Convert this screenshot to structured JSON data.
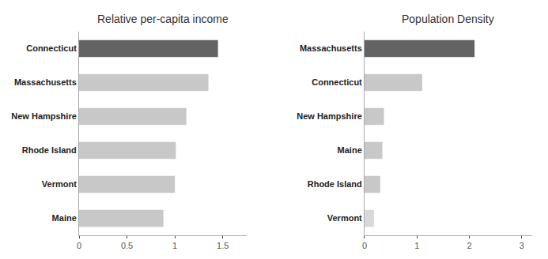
{
  "chart_data": [
    {
      "type": "bar",
      "orientation": "horizontal",
      "title": "Relative per-capita income",
      "categories": [
        "Connecticut",
        "Massachusetts",
        "New Hampshire",
        "Rhode Island",
        "Vermont",
        "Maine"
      ],
      "values": [
        1.45,
        1.35,
        1.12,
        1.01,
        1.0,
        0.88
      ],
      "colors": [
        "#636363",
        "#c8c8c8",
        "#c8c8c8",
        "#c8c8c8",
        "#c8c8c8",
        "#c8c8c8"
      ],
      "xlim": [
        0,
        1.75
      ],
      "xticks": [
        0,
        0.5,
        1,
        1.5
      ],
      "grid": false
    },
    {
      "type": "bar",
      "orientation": "horizontal",
      "title": "Population Density",
      "categories": [
        "Massachusetts",
        "Connecticut",
        "New Hampshire",
        "Maine",
        "Rhode Island",
        "Vermont"
      ],
      "values": [
        2.1,
        1.1,
        0.37,
        0.34,
        0.3,
        0.18
      ],
      "colors": [
        "#636363",
        "#c8c8c8",
        "#c8c8c8",
        "#c8c8c8",
        "#c8c8c8",
        "#d8d8d8"
      ],
      "xlim": [
        0,
        3.2
      ],
      "xticks": [
        0,
        1,
        2,
        3
      ],
      "grid": false
    }
  ]
}
